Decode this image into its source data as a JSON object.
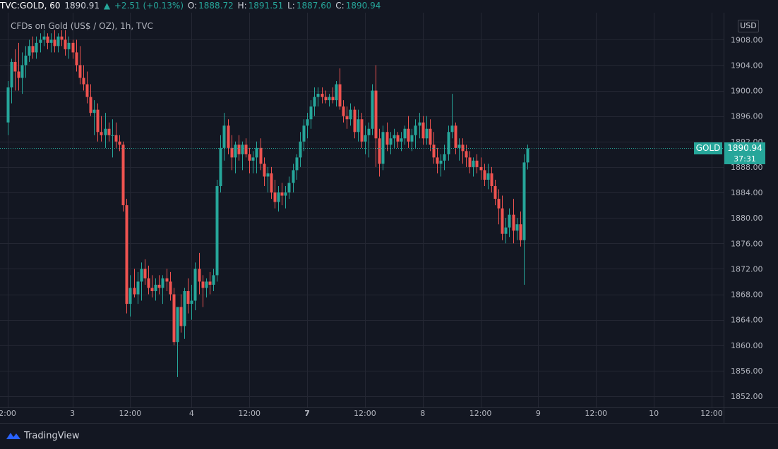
{
  "header": {
    "symbol": "TVC:GOLD, 60",
    "last": "1890.91",
    "change": "+2.51 (+0.13%)",
    "open_label": "O:",
    "open": "1888.72",
    "high_label": "H:",
    "high": "1891.51",
    "low_label": "L:",
    "low": "1887.60",
    "close_label": "C:",
    "close": "1890.94"
  },
  "subtitle": "CFDs on Gold (US$ / OZ), 1h, TVC",
  "currency": "USD",
  "current": {
    "label": "GOLD",
    "price": "1890.94",
    "countdown": "37:31"
  },
  "brand": "TradingView",
  "colors": {
    "bg": "#131722",
    "up": "#26a69a",
    "down": "#ef5350",
    "grid": "#242733",
    "text": "#d1d4dc"
  },
  "chart_data": {
    "type": "candlestick",
    "y_ticks": [
      "1908.00",
      "1904.00",
      "1900.00",
      "1896.00",
      "1892.00",
      "1888.00",
      "1884.00",
      "1880.00",
      "1876.00",
      "1872.00",
      "1868.00",
      "1864.00",
      "1860.00",
      "1856.00",
      "1852.00"
    ],
    "ylim": [
      1850.5,
      1911.5
    ],
    "x_ticks": [
      {
        "label": "2:00",
        "bar": 0
      },
      {
        "label": "3",
        "bar": 18
      },
      {
        "label": "12:00",
        "bar": 34
      },
      {
        "label": "4",
        "bar": 51
      },
      {
        "label": "12:00",
        "bar": 67
      },
      {
        "label": "7",
        "bar": 83
      },
      {
        "label": "12:00",
        "bar": 99
      },
      {
        "label": "8",
        "bar": 115
      },
      {
        "label": "12:00",
        "bar": 131
      },
      {
        "label": "9",
        "bar": 147
      },
      {
        "label": "12:00",
        "bar": 163
      },
      {
        "label": "10",
        "bar": 179
      },
      {
        "label": "12:00",
        "bar": 195
      }
    ],
    "current_price": 1890.94,
    "ohlc": [
      [
        1895.0,
        1901.5,
        1893.0,
        1900.5
      ],
      [
        1900.5,
        1905.0,
        1898.0,
        1904.5
      ],
      [
        1904.5,
        1906.5,
        1900.0,
        1903.0
      ],
      [
        1903.0,
        1907.5,
        1900.0,
        1902.0
      ],
      [
        1902.0,
        1906.0,
        1899.5,
        1904.0
      ],
      [
        1904.0,
        1907.0,
        1902.0,
        1905.5
      ],
      [
        1905.5,
        1908.0,
        1904.5,
        1907.0
      ],
      [
        1907.0,
        1908.5,
        1905.0,
        1906.0
      ],
      [
        1906.0,
        1908.5,
        1905.0,
        1907.5
      ],
      [
        1907.5,
        1909.0,
        1906.0,
        1908.0
      ],
      [
        1908.0,
        1909.5,
        1907.0,
        1908.5
      ],
      [
        1908.5,
        1909.0,
        1906.5,
        1907.5
      ],
      [
        1907.5,
        1909.0,
        1906.0,
        1908.0
      ],
      [
        1908.0,
        1909.5,
        1906.0,
        1907.0
      ],
      [
        1907.0,
        1909.0,
        1906.0,
        1908.5
      ],
      [
        1908.5,
        1909.5,
        1907.0,
        1908.0
      ],
      [
        1908.0,
        1909.5,
        1905.5,
        1906.5
      ],
      [
        1906.5,
        1908.5,
        1905.0,
        1907.5
      ],
      [
        1907.5,
        1908.0,
        1905.0,
        1906.0
      ],
      [
        1906.0,
        1908.0,
        1903.0,
        1904.0
      ],
      [
        1904.0,
        1907.0,
        1901.0,
        1902.0
      ],
      [
        1902.0,
        1904.0,
        1900.0,
        1901.0
      ],
      [
        1901.0,
        1903.0,
        1898.0,
        1899.0
      ],
      [
        1899.0,
        1901.0,
        1896.0,
        1896.5
      ],
      [
        1896.5,
        1898.5,
        1893.0,
        1897.0
      ],
      [
        1897.0,
        1898.0,
        1892.0,
        1893.5
      ],
      [
        1893.5,
        1896.0,
        1892.0,
        1893.0
      ],
      [
        1893.0,
        1896.5,
        1891.0,
        1894.0
      ],
      [
        1894.0,
        1895.0,
        1892.0,
        1893.0
      ],
      [
        1893.0,
        1895.5,
        1889.5,
        1893.0
      ],
      [
        1893.0,
        1895.0,
        1891.0,
        1892.0
      ],
      [
        1892.0,
        1893.0,
        1890.5,
        1891.5
      ],
      [
        1891.5,
        1892.0,
        1881.0,
        1882.0
      ],
      [
        1882.0,
        1883.0,
        1865.0,
        1866.5
      ],
      [
        1866.5,
        1871.0,
        1864.5,
        1869.0
      ],
      [
        1869.0,
        1872.0,
        1867.5,
        1868.0
      ],
      [
        1868.0,
        1871.5,
        1866.5,
        1870.0
      ],
      [
        1870.0,
        1873.0,
        1867.0,
        1872.0
      ],
      [
        1872.0,
        1873.5,
        1869.5,
        1870.5
      ],
      [
        1870.5,
        1872.5,
        1868.0,
        1869.0
      ],
      [
        1869.0,
        1871.0,
        1867.5,
        1868.5
      ],
      [
        1868.5,
        1870.5,
        1867.0,
        1869.5
      ],
      [
        1869.5,
        1871.0,
        1868.0,
        1869.0
      ],
      [
        1869.0,
        1871.0,
        1866.5,
        1870.5
      ],
      [
        1870.5,
        1872.0,
        1868.5,
        1870.0
      ],
      [
        1870.0,
        1871.5,
        1867.0,
        1868.0
      ],
      [
        1868.0,
        1869.0,
        1860.0,
        1860.5
      ],
      [
        1860.5,
        1865.5,
        1855.0,
        1866.0
      ],
      [
        1866.0,
        1868.0,
        1862.0,
        1863.0
      ],
      [
        1863.0,
        1869.0,
        1861.0,
        1868.5
      ],
      [
        1868.5,
        1870.5,
        1865.0,
        1866.5
      ],
      [
        1866.5,
        1869.5,
        1864.0,
        1867.0
      ],
      [
        1867.0,
        1873.0,
        1865.5,
        1872.0
      ],
      [
        1872.0,
        1874.5,
        1868.0,
        1870.0
      ],
      [
        1870.0,
        1871.0,
        1866.0,
        1869.0
      ],
      [
        1869.0,
        1870.5,
        1867.5,
        1870.0
      ],
      [
        1870.0,
        1871.5,
        1868.0,
        1869.5
      ],
      [
        1869.5,
        1872.0,
        1868.5,
        1871.0
      ],
      [
        1871.0,
        1886.0,
        1870.0,
        1885.0
      ],
      [
        1885.0,
        1893.0,
        1884.0,
        1891.0
      ],
      [
        1891.0,
        1896.5,
        1889.0,
        1894.5
      ],
      [
        1894.5,
        1895.5,
        1890.0,
        1891.0
      ],
      [
        1891.0,
        1893.0,
        1887.5,
        1889.5
      ],
      [
        1889.5,
        1892.0,
        1887.0,
        1891.5
      ],
      [
        1891.5,
        1893.0,
        1889.0,
        1890.0
      ],
      [
        1890.0,
        1892.0,
        1887.5,
        1891.5
      ],
      [
        1891.5,
        1892.5,
        1889.5,
        1890.0
      ],
      [
        1890.0,
        1891.0,
        1887.0,
        1889.0
      ],
      [
        1889.0,
        1890.5,
        1887.0,
        1889.5
      ],
      [
        1889.5,
        1892.0,
        1887.0,
        1891.0
      ],
      [
        1891.0,
        1892.5,
        1887.5,
        1888.5
      ],
      [
        1888.5,
        1889.5,
        1885.0,
        1886.5
      ],
      [
        1886.5,
        1888.0,
        1884.0,
        1887.0
      ],
      [
        1887.0,
        1888.0,
        1883.0,
        1884.0
      ],
      [
        1884.0,
        1886.0,
        1881.5,
        1882.5
      ],
      [
        1882.5,
        1885.0,
        1881.0,
        1884.0
      ],
      [
        1884.0,
        1885.5,
        1882.0,
        1883.5
      ],
      [
        1883.5,
        1885.0,
        1881.5,
        1884.0
      ],
      [
        1884.0,
        1886.5,
        1883.0,
        1885.5
      ],
      [
        1885.5,
        1888.5,
        1884.0,
        1887.5
      ],
      [
        1887.5,
        1890.0,
        1886.0,
        1889.5
      ],
      [
        1889.5,
        1893.5,
        1888.0,
        1892.0
      ],
      [
        1892.0,
        1895.5,
        1890.5,
        1894.5
      ],
      [
        1894.5,
        1896.5,
        1892.5,
        1895.5
      ],
      [
        1895.5,
        1898.5,
        1894.0,
        1897.5
      ],
      [
        1897.5,
        1900.5,
        1896.0,
        1899.0
      ],
      [
        1899.0,
        1900.5,
        1897.5,
        1899.5
      ],
      [
        1899.5,
        1900.5,
        1898.0,
        1899.0
      ],
      [
        1899.0,
        1900.0,
        1898.0,
        1898.5
      ],
      [
        1898.5,
        1899.5,
        1897.5,
        1899.0
      ],
      [
        1899.0,
        1900.5,
        1898.0,
        1898.5
      ],
      [
        1898.5,
        1901.5,
        1897.5,
        1901.0
      ],
      [
        1901.0,
        1903.5,
        1897.0,
        1897.5
      ],
      [
        1897.5,
        1898.5,
        1895.0,
        1896.0
      ],
      [
        1896.0,
        1897.5,
        1894.0,
        1895.5
      ],
      [
        1895.5,
        1898.0,
        1894.5,
        1897.0
      ],
      [
        1897.0,
        1897.5,
        1892.5,
        1893.5
      ],
      [
        1893.5,
        1897.0,
        1892.0,
        1895.5
      ],
      [
        1895.5,
        1896.5,
        1891.0,
        1892.0
      ],
      [
        1892.0,
        1894.5,
        1890.0,
        1893.0
      ],
      [
        1893.0,
        1895.0,
        1889.5,
        1894.0
      ],
      [
        1894.0,
        1901.0,
        1893.0,
        1900.0
      ],
      [
        1900.0,
        1904.0,
        1888.0,
        1892.5
      ],
      [
        1892.5,
        1894.0,
        1886.5,
        1888.5
      ],
      [
        1888.5,
        1894.5,
        1887.5,
        1893.5
      ],
      [
        1893.5,
        1895.0,
        1890.5,
        1891.5
      ],
      [
        1891.5,
        1893.5,
        1890.0,
        1892.5
      ],
      [
        1892.5,
        1894.0,
        1891.0,
        1893.0
      ],
      [
        1893.0,
        1893.5,
        1891.0,
        1892.0
      ],
      [
        1892.0,
        1893.5,
        1890.5,
        1892.5
      ],
      [
        1892.5,
        1894.5,
        1891.5,
        1894.0
      ],
      [
        1894.0,
        1896.0,
        1891.0,
        1892.0
      ],
      [
        1892.0,
        1894.0,
        1890.5,
        1893.0
      ],
      [
        1893.0,
        1895.5,
        1891.0,
        1894.5
      ],
      [
        1894.5,
        1896.5,
        1892.5,
        1895.0
      ],
      [
        1895.0,
        1896.0,
        1891.5,
        1892.5
      ],
      [
        1892.5,
        1896.0,
        1891.5,
        1894.0
      ],
      [
        1894.0,
        1895.5,
        1890.5,
        1891.5
      ],
      [
        1891.5,
        1893.5,
        1888.5,
        1889.5
      ],
      [
        1889.5,
        1891.0,
        1887.0,
        1888.5
      ],
      [
        1888.5,
        1890.0,
        1886.5,
        1889.0
      ],
      [
        1889.0,
        1891.5,
        1887.5,
        1890.0
      ],
      [
        1890.0,
        1894.5,
        1889.0,
        1893.5
      ],
      [
        1893.5,
        1899.5,
        1892.5,
        1894.5
      ],
      [
        1894.5,
        1895.0,
        1890.0,
        1891.0
      ],
      [
        1891.0,
        1892.5,
        1889.0,
        1891.5
      ],
      [
        1891.5,
        1892.5,
        1888.5,
        1890.5
      ],
      [
        1890.5,
        1891.5,
        1888.0,
        1889.5
      ],
      [
        1889.5,
        1890.5,
        1887.0,
        1888.0
      ],
      [
        1888.0,
        1889.5,
        1886.5,
        1889.0
      ],
      [
        1889.0,
        1890.0,
        1887.0,
        1888.0
      ],
      [
        1888.0,
        1889.5,
        1886.0,
        1887.5
      ],
      [
        1887.5,
        1888.5,
        1885.0,
        1886.0
      ],
      [
        1886.0,
        1888.5,
        1884.5,
        1887.0
      ],
      [
        1887.0,
        1888.0,
        1884.0,
        1885.0
      ],
      [
        1885.0,
        1886.0,
        1882.0,
        1883.0
      ],
      [
        1883.0,
        1884.5,
        1879.0,
        1881.5
      ],
      [
        1881.5,
        1883.5,
        1876.5,
        1877.5
      ],
      [
        1877.5,
        1880.0,
        1876.0,
        1878.5
      ],
      [
        1878.5,
        1881.5,
        1877.0,
        1880.5
      ],
      [
        1880.5,
        1883.0,
        1876.0,
        1878.0
      ],
      [
        1878.0,
        1880.0,
        1876.5,
        1879.0
      ],
      [
        1879.0,
        1881.0,
        1875.5,
        1876.5
      ],
      [
        1876.5,
        1890.0,
        1869.5,
        1888.72
      ],
      [
        1888.72,
        1891.51,
        1887.6,
        1890.94
      ]
    ]
  }
}
